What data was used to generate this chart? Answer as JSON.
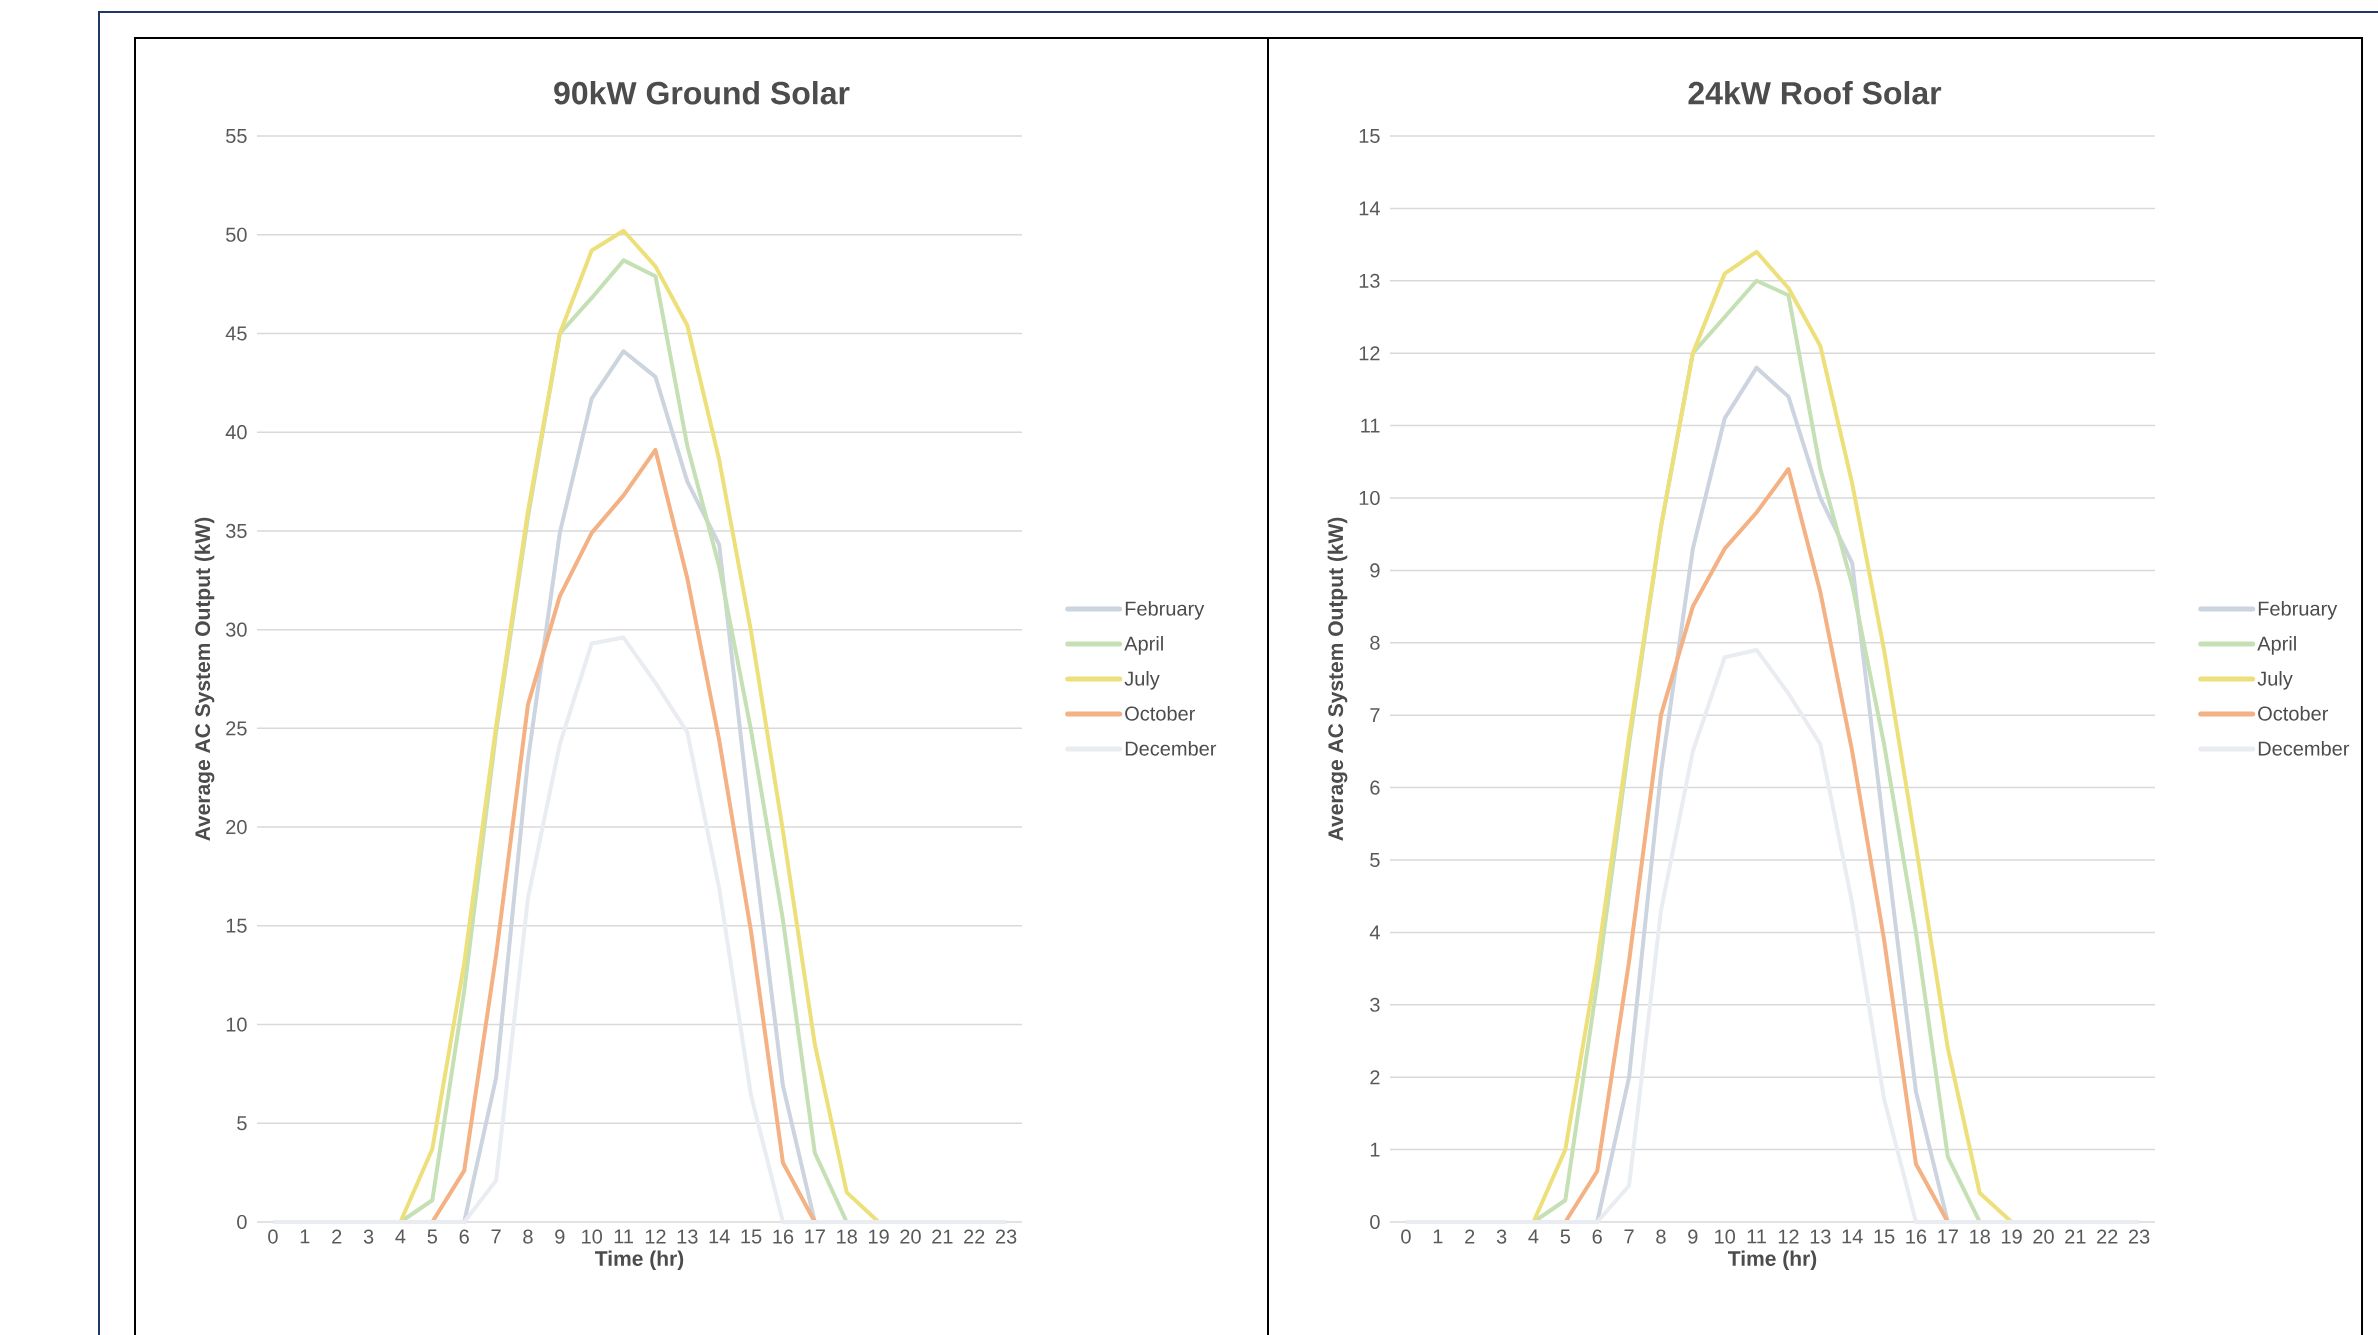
{
  "chart_data": [
    {
      "type": "line",
      "title": "90kW Ground Solar",
      "xlabel": "Time (hr)",
      "ylabel": "Average AC System Output (kW)",
      "categories": [
        "0",
        "1",
        "2",
        "3",
        "4",
        "5",
        "6",
        "7",
        "8",
        "9",
        "10",
        "11",
        "12",
        "13",
        "14",
        "15",
        "16",
        "17",
        "18",
        "19",
        "20",
        "21",
        "22",
        "23"
      ],
      "series": [
        {
          "name": "February",
          "color": "#ccd4df",
          "values": [
            0,
            0,
            0,
            0,
            0,
            0,
            0,
            7.3,
            23.4,
            34.9,
            41.7,
            44.1,
            42.8,
            37.5,
            34.3,
            20,
            6.9,
            0,
            0,
            0,
            0,
            0,
            0,
            0
          ]
        },
        {
          "name": "April",
          "color": "#c5e0b4",
          "values": [
            0,
            0,
            0,
            0,
            0,
            1.1,
            11.7,
            24.8,
            35.7,
            45,
            46.8,
            48.7,
            47.9,
            39.3,
            33.2,
            24.9,
            15.3,
            3.5,
            0,
            0,
            0,
            0,
            0,
            0
          ]
        },
        {
          "name": "July",
          "color": "#ede07a",
          "values": [
            null,
            null,
            null,
            0,
            0,
            3.7,
            13.1,
            25.1,
            36,
            45,
            49.2,
            50.2,
            48.4,
            45.4,
            38.6,
            29.9,
            19.8,
            9,
            1.5,
            0,
            0,
            null,
            null,
            null
          ]
        },
        {
          "name": "October",
          "color": "#f4b183",
          "values": [
            null,
            null,
            null,
            null,
            0,
            0,
            2.6,
            13.5,
            26.2,
            31.7,
            34.9,
            36.8,
            39.1,
            32.6,
            24.4,
            14.7,
            3,
            0,
            0,
            null,
            null,
            null,
            null,
            null
          ]
        },
        {
          "name": "December",
          "color": "#e9ecf0",
          "values": [
            0,
            0,
            0,
            0,
            0,
            0,
            0,
            2.1,
            16.4,
            24.2,
            29.3,
            29.6,
            27.3,
            24.8,
            16.9,
            6.4,
            0,
            0,
            0,
            0,
            0,
            0,
            0,
            0
          ]
        }
      ],
      "ylim": [
        0,
        55
      ],
      "yticks": [
        0,
        5,
        10,
        15,
        20,
        25,
        30,
        35,
        40,
        45,
        50,
        55
      ],
      "grid": "y",
      "legend": "right"
    },
    {
      "type": "line",
      "title": "24kW Roof Solar",
      "xlabel": "Time (hr)",
      "ylabel": "Average AC System Output (kW)",
      "categories": [
        "0",
        "1",
        "2",
        "3",
        "4",
        "5",
        "6",
        "7",
        "8",
        "9",
        "10",
        "11",
        "12",
        "13",
        "14",
        "15",
        "16",
        "17",
        "18",
        "19",
        "20",
        "21",
        "22",
        "23"
      ],
      "series": [
        {
          "name": "February",
          "color": "#ccd4df",
          "values": [
            0,
            0,
            0,
            0,
            0,
            0,
            0,
            2,
            6.2,
            9.3,
            11.1,
            11.8,
            11.4,
            10,
            9.1,
            5.4,
            1.8,
            0,
            0,
            0,
            0,
            0,
            0,
            0
          ]
        },
        {
          "name": "April",
          "color": "#c5e0b4",
          "values": [
            0,
            0,
            0,
            0,
            0,
            0.3,
            3.3,
            6.6,
            9.6,
            12,
            12.5,
            13,
            12.8,
            10.4,
            8.8,
            6.6,
            4,
            0.9,
            0,
            0,
            0,
            0,
            0,
            0
          ]
        },
        {
          "name": "July",
          "color": "#ede07a",
          "values": [
            null,
            null,
            null,
            0,
            0,
            1,
            3.6,
            6.7,
            9.6,
            12,
            13.1,
            13.4,
            12.9,
            12.1,
            10.2,
            7.9,
            5.2,
            2.4,
            0.4,
            0,
            0,
            null,
            null,
            null
          ]
        },
        {
          "name": "October",
          "color": "#f4b183",
          "values": [
            null,
            null,
            null,
            null,
            0,
            0,
            0.7,
            3.6,
            7,
            8.5,
            9.3,
            9.8,
            10.4,
            8.7,
            6.5,
            3.9,
            0.8,
            0,
            0,
            null,
            null,
            null,
            null,
            null
          ]
        },
        {
          "name": "December",
          "color": "#e9ecf0",
          "values": [
            0,
            0,
            0,
            0,
            0,
            0,
            0,
            0.5,
            4.3,
            6.5,
            7.8,
            7.9,
            7.3,
            6.6,
            4.4,
            1.7,
            0,
            0,
            0,
            0,
            0,
            0,
            0,
            0
          ]
        }
      ],
      "ylim": [
        0,
        15
      ],
      "yticks": [
        0,
        1,
        2,
        3,
        4,
        5,
        6,
        7,
        8,
        9,
        10,
        11,
        12,
        13,
        14,
        15
      ],
      "grid": "y",
      "legend": "right"
    }
  ]
}
